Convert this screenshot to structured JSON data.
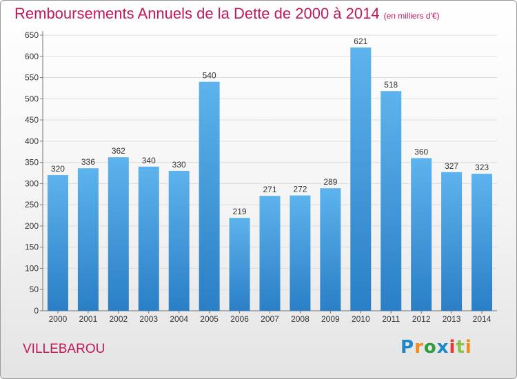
{
  "header": {
    "title": "Remboursements Annuels de la Dette de 2000 à 2014",
    "subtitle": "(en milliers d'€)"
  },
  "footer": {
    "city": "VILLEBAROU",
    "logo": "Proxiti"
  },
  "colors": {
    "title": "#c2185b",
    "bar_top": "#5db3ec",
    "bar_bottom": "#2a7fc6",
    "grid": "#dddddd"
  },
  "chart_data": {
    "type": "bar",
    "categories": [
      "2000",
      "2001",
      "2002",
      "2003",
      "2004",
      "2005",
      "2006",
      "2007",
      "2008",
      "2009",
      "2010",
      "2011",
      "2012",
      "2013",
      "2014"
    ],
    "values": [
      320,
      336,
      362,
      340,
      330,
      540,
      219,
      271,
      272,
      289,
      621,
      518,
      360,
      327,
      323
    ],
    "title": "Remboursements Annuels de la Dette de 2000 à 2014",
    "xlabel": "",
    "ylabel": "",
    "ylim": [
      0,
      650
    ],
    "yticks": [
      0,
      50,
      100,
      150,
      200,
      250,
      300,
      350,
      400,
      450,
      500,
      550,
      600,
      650
    ],
    "grid": true,
    "data_labels": true
  }
}
